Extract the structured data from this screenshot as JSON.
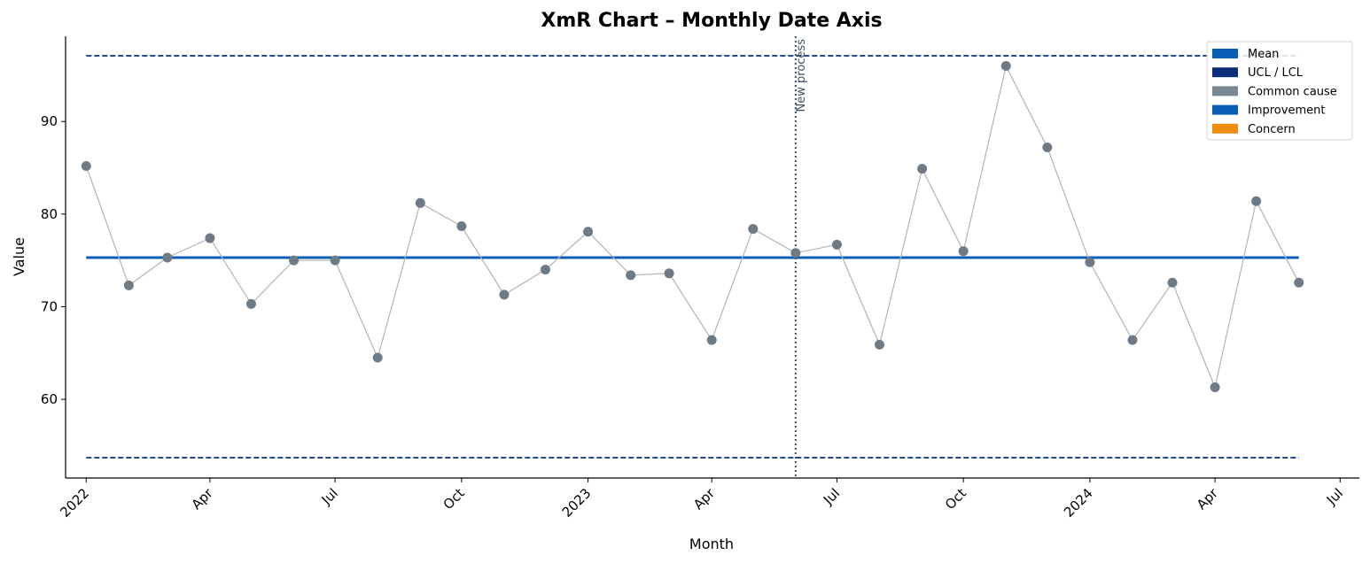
{
  "chart_data": {
    "type": "line",
    "title": "XmR Chart – Monthly Date Axis",
    "xlabel": "Month",
    "ylabel": "Value",
    "x_axis_type": "date",
    "xlim": [
      "2021-12-17",
      "2024-07-15"
    ],
    "ylim": [
      51.5,
      99.2
    ],
    "y_ticks": [
      60,
      70,
      80,
      90
    ],
    "x_ticks": [
      {
        "date": "2022-01-01",
        "label": "2022"
      },
      {
        "date": "2022-04-01",
        "label": "Apr"
      },
      {
        "date": "2022-07-01",
        "label": "Jul"
      },
      {
        "date": "2022-10-01",
        "label": "Oct"
      },
      {
        "date": "2023-01-01",
        "label": "2023"
      },
      {
        "date": "2023-04-01",
        "label": "Apr"
      },
      {
        "date": "2023-07-01",
        "label": "Jul"
      },
      {
        "date": "2023-10-01",
        "label": "Oct"
      },
      {
        "date": "2024-01-01",
        "label": "2024"
      },
      {
        "date": "2024-04-01",
        "label": "Apr"
      },
      {
        "date": "2024-07-01",
        "label": "Jul"
      }
    ],
    "grid": false,
    "mean": 75.3,
    "ucl": 97.1,
    "lcl": 53.7,
    "annotation": {
      "date": "2023-06-01",
      "label": "New process",
      "color": "#3d4f63"
    },
    "legend": {
      "placement": "top-right",
      "entries": [
        {
          "label": "Mean",
          "color": "#0a5fb5"
        },
        {
          "label": "UCL / LCL",
          "color": "#0b2f7a"
        },
        {
          "label": "Common cause",
          "color": "#7a8794"
        },
        {
          "label": "Improvement",
          "color": "#0a5fb5"
        },
        {
          "label": "Concern",
          "color": "#ef8c12"
        }
      ]
    },
    "colors": {
      "mean": "#0a5fb5",
      "limits": "#0b2f7a",
      "point": "#6e7a86",
      "connector": "#b0b4b8"
    },
    "series": [
      {
        "points": [
          {
            "x": "2022-01-01",
            "y": 85.2
          },
          {
            "x": "2022-02-01",
            "y": 72.3
          },
          {
            "x": "2022-03-01",
            "y": 75.3
          },
          {
            "x": "2022-04-01",
            "y": 77.4
          },
          {
            "x": "2022-05-01",
            "y": 70.3
          },
          {
            "x": "2022-06-01",
            "y": 75.0
          },
          {
            "x": "2022-07-01",
            "y": 75.0
          },
          {
            "x": "2022-08-01",
            "y": 64.5
          },
          {
            "x": "2022-09-01",
            "y": 81.2
          },
          {
            "x": "2022-10-01",
            "y": 78.7
          },
          {
            "x": "2022-11-01",
            "y": 71.3
          },
          {
            "x": "2022-12-01",
            "y": 74.0
          },
          {
            "x": "2023-01-01",
            "y": 78.1
          },
          {
            "x": "2023-02-01",
            "y": 73.4
          },
          {
            "x": "2023-03-01",
            "y": 73.6
          },
          {
            "x": "2023-04-01",
            "y": 66.4
          },
          {
            "x": "2023-05-01",
            "y": 78.4
          },
          {
            "x": "2023-06-01",
            "y": 75.8
          },
          {
            "x": "2023-07-01",
            "y": 76.7
          },
          {
            "x": "2023-08-01",
            "y": 65.9
          },
          {
            "x": "2023-09-01",
            "y": 84.9
          },
          {
            "x": "2023-10-01",
            "y": 76.0
          },
          {
            "x": "2023-11-01",
            "y": 96.0
          },
          {
            "x": "2023-12-01",
            "y": 87.2
          },
          {
            "x": "2024-01-01",
            "y": 74.8
          },
          {
            "x": "2024-02-01",
            "y": 66.4
          },
          {
            "x": "2024-03-01",
            "y": 72.6
          },
          {
            "x": "2024-04-01",
            "y": 61.3
          },
          {
            "x": "2024-05-01",
            "y": 81.4
          },
          {
            "x": "2024-06-01",
            "y": 72.6
          }
        ]
      }
    ]
  }
}
